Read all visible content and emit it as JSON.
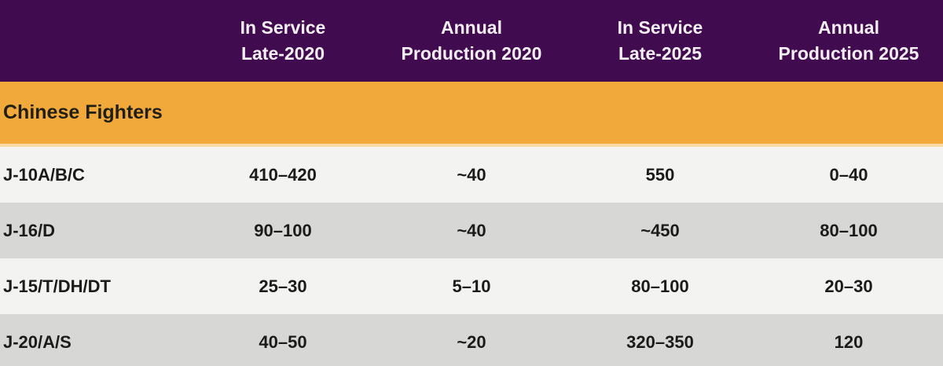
{
  "colors": {
    "header_bg": "#400b4f",
    "header_text": "#f5eff5",
    "section_bg": "#f2a93b",
    "section_divider": "#f8d9a4",
    "row_light": "#f3f3f1",
    "row_dark": "#d7d7d5",
    "data_text": "#1b1b1b"
  },
  "chart_data": {
    "type": "table",
    "columns": [
      "",
      "In Service\nLate-2020",
      "Annual\nProduction 2020",
      "In Service\nLate-2025",
      "Annual\nProduction 2025"
    ],
    "section": "Chinese Fighters",
    "rows": [
      {
        "label": "J-10A/B/C",
        "values": [
          "410–420",
          "~40",
          "550",
          "0–40"
        ]
      },
      {
        "label": "J-16/D",
        "values": [
          "90–100",
          "~40",
          "~450",
          "80–100"
        ]
      },
      {
        "label": "J-15/T/DH/DT",
        "values": [
          "25–30",
          "5–10",
          "80–100",
          "20–30"
        ]
      },
      {
        "label": "J-20/A/S",
        "values": [
          "40–50",
          "~20",
          "320–350",
          "120"
        ]
      }
    ]
  }
}
